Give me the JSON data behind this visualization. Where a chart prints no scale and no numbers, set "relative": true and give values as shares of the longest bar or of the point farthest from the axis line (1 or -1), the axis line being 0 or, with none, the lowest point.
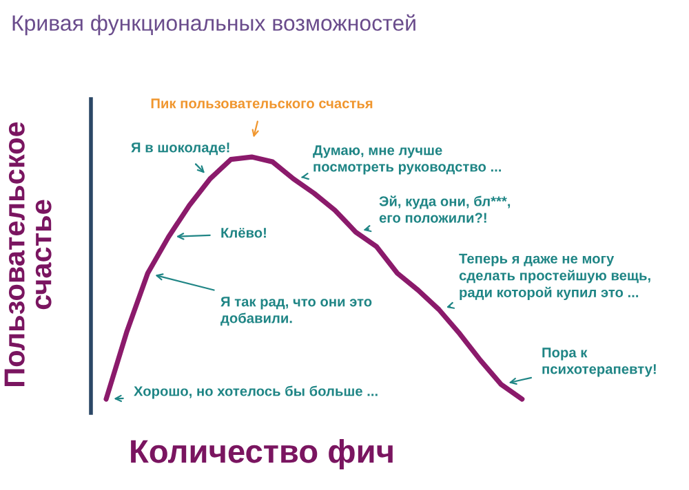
{
  "chart_data": {
    "type": "line",
    "relative": true,
    "title": "Кривая функциональных возможностей",
    "xlabel": "Количество фич",
    "ylabel": "Пользовательское\nсчастье",
    "categories": [
      null,
      null,
      null,
      null,
      null,
      null,
      null,
      null,
      null,
      null,
      null,
      null,
      null,
      null,
      null,
      null,
      null,
      null,
      null,
      null,
      null
    ],
    "series": [
      {
        "color": "#8b1a6b",
        "values": [
          0,
          0.28,
          0.52,
          0.67,
          0.8,
          0.91,
          0.99,
          1,
          0.98,
          0.91,
          0.85,
          0.78,
          0.69,
          0.63,
          0.52,
          0.45,
          0.37,
          0.27,
          0.16,
          0.06,
          0
        ]
      }
    ],
    "annotations": [
      "Пик пользовательского счастья",
      "Я в шоколаде!",
      "Думаю, мне лучше\nпосмотреть руководство ...",
      "Эй, куда они, бл***,\nего положили?!",
      "Клёво!",
      "Я так рад, что они это\nдобавили.",
      "Теперь я даже не могу\nсделать простейшую вещь,\nради которой купил это ...",
      "Пора к\nпсихотерапевту!",
      "Хорошо, но хотелось бы больше ..."
    ]
  }
}
